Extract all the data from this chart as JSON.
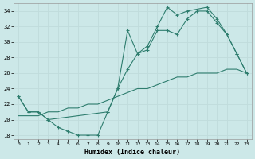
{
  "xlabel": "Humidex (Indice chaleur)",
  "background_color": "#cce8e8",
  "grid_color": "#d9eeee",
  "line_color": "#2e7d6e",
  "xlim": [
    -0.5,
    23.5
  ],
  "ylim": [
    17.5,
    35.0
  ],
  "xticks": [
    0,
    1,
    2,
    3,
    4,
    5,
    6,
    7,
    8,
    9,
    10,
    11,
    12,
    13,
    14,
    15,
    16,
    17,
    18,
    19,
    20,
    21,
    22,
    23
  ],
  "yticks": [
    18,
    20,
    22,
    24,
    26,
    28,
    30,
    32,
    34
  ],
  "line1_x": [
    0,
    1,
    2,
    3,
    4,
    5,
    6,
    7,
    8,
    9,
    10,
    11,
    12,
    13,
    14,
    15,
    16,
    17,
    18,
    19,
    20,
    21,
    22,
    23
  ],
  "line1_y": [
    23,
    21,
    21,
    20,
    19,
    18.5,
    18,
    18,
    18,
    21,
    24,
    26.5,
    28.5,
    29,
    31.5,
    31.5,
    31,
    33,
    34,
    34,
    32.5,
    31,
    28.5,
    26
  ],
  "line2_x": [
    0,
    1,
    2,
    3,
    9,
    10,
    11,
    12,
    13,
    14,
    15,
    16,
    17,
    19,
    20,
    21,
    22,
    23
  ],
  "line2_y": [
    23,
    21,
    21,
    20,
    21,
    24,
    31.5,
    28.5,
    29.5,
    32,
    34.5,
    33.5,
    34,
    34.5,
    33,
    31,
    28.5,
    26
  ],
  "line3_x": [
    0,
    1,
    2,
    3,
    4,
    5,
    6,
    7,
    8,
    9,
    10,
    11,
    12,
    13,
    14,
    15,
    16,
    17,
    18,
    19,
    20,
    21,
    22,
    23
  ],
  "line3_y": [
    20.5,
    20.5,
    20.5,
    21,
    21,
    21.5,
    21.5,
    22,
    22,
    22.5,
    23,
    23.5,
    24,
    24,
    24.5,
    25,
    25.5,
    25.5,
    26,
    26,
    26,
    26.5,
    26.5,
    26
  ]
}
